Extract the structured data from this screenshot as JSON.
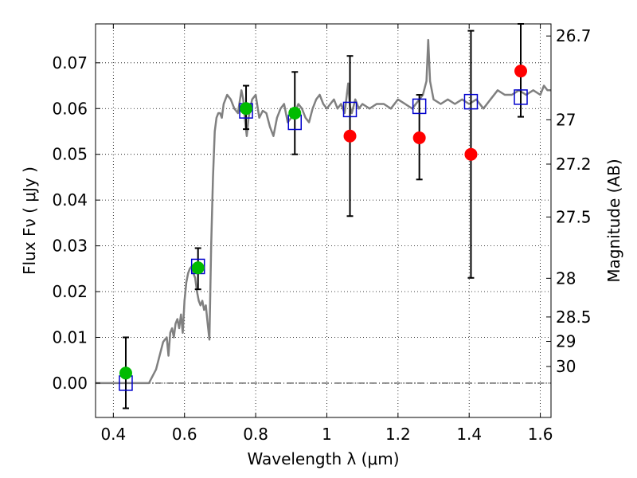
{
  "chart_data": {
    "type": "scatter",
    "xlabel": "Wavelength  λ (μm)",
    "ylabel": "Flux  Fν  ( μJy )",
    "ylabel_right": "Magnitude (AB)",
    "xlim": [
      0.35,
      1.63
    ],
    "ylim": [
      -0.0075,
      0.0785
    ],
    "grid": true,
    "x_ticks": [
      0.4,
      0.6,
      0.8,
      1.0,
      1.2,
      1.4,
      1.6
    ],
    "x_tick_labels": [
      "0.4",
      "0.6",
      "0.8",
      "1",
      "1.2",
      "1.4",
      "1.6"
    ],
    "y_ticks": [
      0.0,
      0.01,
      0.02,
      0.03,
      0.04,
      0.05,
      0.06,
      0.07
    ],
    "y_tick_labels": [
      "0.00",
      "0.01",
      "0.02",
      "0.03",
      "0.04",
      "0.05",
      "0.06",
      "0.07"
    ],
    "right_ticks": [
      {
        "label": "26.7",
        "mag": 26.7
      },
      {
        "label": "27",
        "mag": 27.0
      },
      {
        "label": "27.2",
        "mag": 27.2
      },
      {
        "label": "27.5",
        "mag": 27.5
      },
      {
        "label": "28",
        "mag": 28.0
      },
      {
        "label": "28.5",
        "mag": 28.5
      },
      {
        "label": "29",
        "mag": 29.0
      },
      {
        "label": "30",
        "mag": 30.0
      }
    ],
    "zero_line": {
      "y": 0.0,
      "style": "dash-dot"
    },
    "series": [
      {
        "kind": "line",
        "color": "#808080",
        "x": [
          0.35,
          0.49,
          0.5,
          0.52,
          0.54,
          0.545,
          0.55,
          0.555,
          0.56,
          0.565,
          0.57,
          0.575,
          0.58,
          0.585,
          0.59,
          0.595,
          0.6,
          0.605,
          0.61,
          0.615,
          0.62,
          0.625,
          0.63,
          0.635,
          0.64,
          0.645,
          0.65,
          0.655,
          0.66,
          0.665,
          0.67,
          0.675,
          0.68,
          0.685,
          0.69,
          0.695,
          0.7,
          0.705,
          0.71,
          0.72,
          0.73,
          0.74,
          0.75,
          0.76,
          0.765,
          0.77,
          0.775,
          0.78,
          0.79,
          0.8,
          0.81,
          0.82,
          0.83,
          0.84,
          0.85,
          0.86,
          0.87,
          0.88,
          0.89,
          0.9,
          0.91,
          0.92,
          0.93,
          0.94,
          0.95,
          0.96,
          0.97,
          0.98,
          0.99,
          1.0,
          1.01,
          1.02,
          1.03,
          1.04,
          1.05,
          1.06,
          1.065,
          1.07,
          1.08,
          1.09,
          1.1,
          1.12,
          1.14,
          1.16,
          1.18,
          1.2,
          1.22,
          1.24,
          1.26,
          1.27,
          1.28,
          1.285,
          1.29,
          1.3,
          1.32,
          1.34,
          1.36,
          1.38,
          1.4,
          1.42,
          1.44,
          1.46,
          1.48,
          1.5,
          1.52,
          1.54,
          1.56,
          1.58,
          1.6,
          1.61,
          1.62,
          1.63
        ],
        "y": [
          0.0,
          0.0,
          0.0,
          0.003,
          0.009,
          0.0095,
          0.01,
          0.006,
          0.011,
          0.012,
          0.01,
          0.013,
          0.014,
          0.012,
          0.015,
          0.011,
          0.018,
          0.022,
          0.024,
          0.025,
          0.0255,
          0.024,
          0.023,
          0.02,
          0.018,
          0.017,
          0.018,
          0.016,
          0.017,
          0.013,
          0.0095,
          0.03,
          0.045,
          0.055,
          0.058,
          0.059,
          0.059,
          0.058,
          0.061,
          0.063,
          0.062,
          0.06,
          0.059,
          0.064,
          0.062,
          0.0575,
          0.054,
          0.058,
          0.062,
          0.063,
          0.058,
          0.0595,
          0.059,
          0.056,
          0.054,
          0.058,
          0.06,
          0.061,
          0.057,
          0.058,
          0.059,
          0.061,
          0.06,
          0.058,
          0.057,
          0.06,
          0.062,
          0.063,
          0.061,
          0.06,
          0.061,
          0.062,
          0.06,
          0.061,
          0.059,
          0.0655,
          0.0605,
          0.059,
          0.062,
          0.06,
          0.061,
          0.06,
          0.061,
          0.061,
          0.06,
          0.062,
          0.061,
          0.06,
          0.062,
          0.063,
          0.066,
          0.075,
          0.066,
          0.062,
          0.061,
          0.062,
          0.061,
          0.062,
          0.061,
          0.062,
          0.06,
          0.062,
          0.064,
          0.063,
          0.063,
          0.064,
          0.063,
          0.064,
          0.063,
          0.065,
          0.064,
          0.064
        ]
      },
      {
        "kind": "open-square",
        "color": "#0000cc",
        "x": [
          0.435,
          0.638,
          0.773,
          0.91,
          1.065,
          1.26,
          1.405,
          1.545
        ],
        "y": [
          0.0,
          0.0255,
          0.0595,
          0.057,
          0.0598,
          0.0605,
          0.0615,
          0.0625
        ]
      },
      {
        "kind": "filled-circle",
        "color": "#00bb00",
        "x": [
          0.435,
          0.638,
          0.773,
          0.91
        ],
        "y": [
          0.0022,
          0.0252,
          0.06,
          0.059
        ]
      },
      {
        "kind": "filled-circle",
        "color": "#ff0000",
        "x": [
          1.065,
          1.26,
          1.405,
          1.545
        ],
        "y": [
          0.054,
          0.0536,
          0.05,
          0.0682
        ]
      },
      {
        "kind": "errorbar",
        "color": "#000000",
        "x": [
          0.435,
          0.638,
          0.773,
          0.91,
          1.065,
          1.26,
          1.405,
          1.545
        ],
        "ylow": [
          -0.0055,
          0.0205,
          0.0555,
          0.05,
          0.0365,
          0.0445,
          0.023,
          0.0582
        ],
        "yhigh": [
          0.01,
          0.0295,
          0.065,
          0.068,
          0.0715,
          0.063,
          0.077,
          0.0785
        ]
      }
    ]
  }
}
